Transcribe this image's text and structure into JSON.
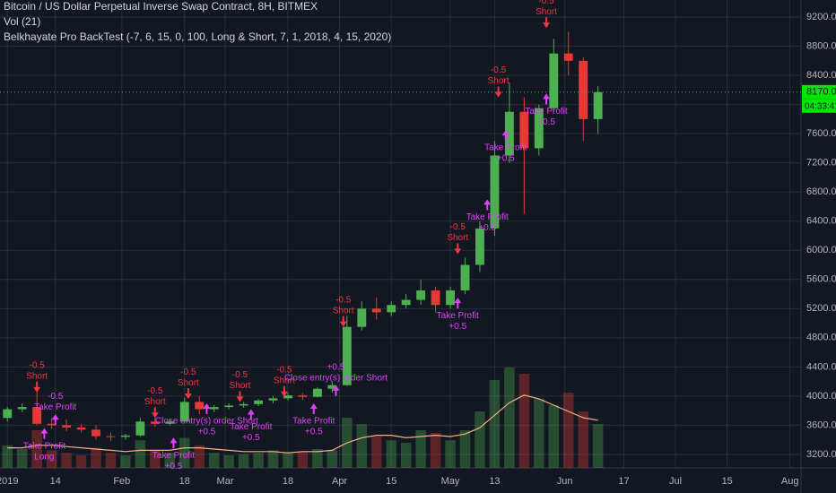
{
  "chart_data": {
    "type": "candlestick",
    "title": "Bitcoin / US Dollar Perpetual Inverse Swap Contract, 8H, BITMEX",
    "indicators": [
      "Vol (21)",
      "Belkhayate Pro BackTest (-7, 6, 15, 0, 100, Long & Short, 7, 1, 2018, 4, 15, 2020)"
    ],
    "x": [
      0,
      4,
      8,
      12,
      16,
      20,
      24,
      28,
      32,
      36,
      40,
      44,
      48,
      52,
      56,
      60,
      64,
      68,
      72,
      76,
      80,
      84,
      88,
      92,
      96,
      100,
      104,
      108,
      112,
      116,
      120,
      124,
      128,
      132,
      136,
      140,
      144,
      148,
      152,
      156,
      160
    ],
    "open": [
      3700,
      3820,
      3850,
      3620,
      3600,
      3570,
      3540,
      3450,
      3440,
      3460,
      3650,
      3620,
      3650,
      3920,
      3820,
      3850,
      3870,
      3890,
      3940,
      3970,
      4010,
      3990,
      4100,
      4150,
      4950,
      5200,
      5150,
      5250,
      5320,
      5450,
      5250,
      5450,
      5800,
      6300,
      7300,
      7900,
      7400,
      7950,
      8700,
      8600,
      7800
    ],
    "high": [
      3850,
      3900,
      4100,
      3700,
      3680,
      3620,
      3600,
      3500,
      3480,
      3700,
      3700,
      3680,
      3980,
      4000,
      3880,
      3900,
      3920,
      3960,
      4000,
      4050,
      4040,
      4120,
      4200,
      5100,
      5300,
      5350,
      5300,
      5400,
      5600,
      5500,
      5500,
      5900,
      6400,
      7500,
      8300,
      8100,
      8000,
      8900,
      9000,
      8650,
      8250
    ],
    "low": [
      3650,
      3780,
      3600,
      3550,
      3520,
      3500,
      3400,
      3380,
      3400,
      3440,
      3580,
      3600,
      3640,
      3750,
      3780,
      3820,
      3840,
      3860,
      3900,
      3940,
      3950,
      3980,
      4050,
      4140,
      4900,
      5050,
      5100,
      5200,
      5250,
      5150,
      5200,
      5400,
      5700,
      6200,
      7200,
      6500,
      7300,
      7900,
      8400,
      7500,
      7600
    ],
    "close": [
      3820,
      3850,
      3620,
      3600,
      3570,
      3540,
      3450,
      3440,
      3460,
      3650,
      3620,
      3650,
      3920,
      3820,
      3850,
      3870,
      3890,
      3940,
      3970,
      4010,
      3990,
      4100,
      4150,
      4950,
      5200,
      5150,
      5250,
      5320,
      5450,
      5250,
      5450,
      5800,
      6300,
      7300,
      7900,
      7400,
      7950,
      8700,
      8600,
      7800,
      8170
    ],
    "volume": [
      18,
      15,
      30,
      14,
      12,
      10,
      16,
      12,
      10,
      22,
      14,
      12,
      24,
      18,
      12,
      10,
      11,
      12,
      14,
      12,
      13,
      15,
      14,
      40,
      35,
      25,
      22,
      20,
      30,
      28,
      22,
      30,
      45,
      70,
      80,
      75,
      55,
      50,
      60,
      45,
      35
    ],
    "volume_ma": [
      16,
      16,
      18,
      18,
      17,
      16,
      15,
      14,
      13,
      14,
      14,
      14,
      16,
      16,
      15,
      14,
      13,
      13,
      13,
      12,
      13,
      13,
      14,
      20,
      24,
      26,
      26,
      24,
      25,
      26,
      25,
      27,
      32,
      42,
      52,
      58,
      55,
      50,
      45,
      40,
      38
    ],
    "volume_lim": [
      0,
      100
    ],
    "up_color": "#4caf50",
    "down_color": "#e53935",
    "volume_ma_color": "#f4b183",
    "xlim": [
      -2,
      215
    ],
    "ylim": [
      3015,
      9434
    ],
    "xticks": [
      {
        "value": 0,
        "label": "2019"
      },
      {
        "value": 13,
        "label": "14"
      },
      {
        "value": 31,
        "label": "Feb"
      },
      {
        "value": 48,
        "label": "18"
      },
      {
        "value": 59,
        "label": "Mar"
      },
      {
        "value": 76,
        "label": "18"
      },
      {
        "value": 90,
        "label": "Apr"
      },
      {
        "value": 104,
        "label": "15"
      },
      {
        "value": 120,
        "label": "May"
      },
      {
        "value": 132,
        "label": "13"
      },
      {
        "value": 151,
        "label": "Jun"
      },
      {
        "value": 167,
        "label": "17"
      },
      {
        "value": 181,
        "label": "Jul"
      },
      {
        "value": 195,
        "label": "15"
      },
      {
        "value": 212,
        "label": "Aug"
      }
    ],
    "yticks": [
      {
        "value": 3200,
        "label": "3200.0"
      },
      {
        "value": 3600,
        "label": "3600.0"
      },
      {
        "value": 4000,
        "label": "4000.0"
      },
      {
        "value": 4400,
        "label": "4400.0"
      },
      {
        "value": 4800,
        "label": "4800.0"
      },
      {
        "value": 5200,
        "label": "5200.0"
      },
      {
        "value": 5600,
        "label": "5600.0"
      },
      {
        "value": 6000,
        "label": "6000.0"
      },
      {
        "value": 6400,
        "label": "6400.0"
      },
      {
        "value": 6800,
        "label": "6800.0"
      },
      {
        "value": 7200,
        "label": "7200.0"
      },
      {
        "value": 7600,
        "label": "7600.0"
      },
      {
        "value": 8000,
        "label": "8000.0"
      },
      {
        "value": 8400,
        "label": "8400.0"
      },
      {
        "value": 8800,
        "label": "8800.0"
      },
      {
        "value": 9200,
        "label": "9200.0"
      }
    ],
    "grid": true,
    "last_price": {
      "value": 8170,
      "label": "8170.0"
    },
    "countdown": "04:33:41",
    "signals": [
      {
        "x": 8,
        "y": 4050,
        "text": "Short",
        "qty": "-0.5",
        "direction": "down",
        "color": "#f23645"
      },
      {
        "x": 13,
        "y": 3750,
        "text": "Take Profit",
        "qty": "-0.5",
        "direction": "up",
        "color": "#e040fb"
      },
      {
        "x": 10,
        "y": 3560,
        "text": "Take Profit",
        "qty": "Long",
        "direction": "below",
        "color": "#e040fb"
      },
      {
        "x": 40,
        "y": 3700,
        "text": "Short",
        "qty": "-0.5",
        "direction": "down",
        "color": "#f23645"
      },
      {
        "x": 45,
        "y": 3430,
        "text": "Take Profit",
        "qty": "+0.5",
        "direction": "below",
        "color": "#e040fb"
      },
      {
        "x": 49,
        "y": 3960,
        "text": "Short",
        "qty": "-0.5",
        "direction": "down",
        "color": "#f23645"
      },
      {
        "x": 54,
        "y": 3900,
        "text": "Close entry(s) order Short",
        "qty": "+0.5",
        "direction": "below",
        "color": "#e040fb"
      },
      {
        "x": 63,
        "y": 3920,
        "text": "Short",
        "qty": "-0.5",
        "direction": "down",
        "color": "#f23645"
      },
      {
        "x": 66,
        "y": 3820,
        "text": "Take Profit",
        "qty": "+0.5",
        "direction": "below",
        "color": "#e040fb"
      },
      {
        "x": 75,
        "y": 3990,
        "text": "Short",
        "qty": "-0.5",
        "direction": "down",
        "color": "#f23645"
      },
      {
        "x": 83,
        "y": 3900,
        "text": "Take Profit",
        "qty": "+0.5",
        "direction": "below",
        "color": "#e040fb"
      },
      {
        "x": 91,
        "y": 4950,
        "text": "Short",
        "qty": "-0.5",
        "direction": "down",
        "color": "#f23645"
      },
      {
        "x": 89,
        "y": 4150,
        "text": "Close entry(s) order Short",
        "qty": "+0.5",
        "direction": "up",
        "color": "#e040fb"
      },
      {
        "x": 122,
        "y": 5950,
        "text": "Short",
        "qty": "-0.5",
        "direction": "down",
        "color": "#f23645"
      },
      {
        "x": 122,
        "y": 5350,
        "text": "Take Profit",
        "qty": "+0.5",
        "direction": "below",
        "color": "#e040fb"
      },
      {
        "x": 130,
        "y": 6700,
        "text": "Take Profit",
        "qty": "+0.5",
        "direction": "below",
        "color": "#e040fb"
      },
      {
        "x": 133,
        "y": 8100,
        "text": "Short",
        "qty": "-0.5",
        "direction": "down",
        "color": "#f23645"
      },
      {
        "x": 135,
        "y": 7650,
        "text": "Take Profit",
        "qty": "+0.5",
        "direction": "below",
        "color": "#e040fb"
      },
      {
        "x": 146,
        "y": 9050,
        "text": "Short",
        "qty": "-0.5",
        "direction": "down",
        "color": "#f23645"
      },
      {
        "x": 146,
        "y": 8150,
        "text": "Take Profit",
        "qty": "+0.5",
        "direction": "below",
        "color": "#e040fb"
      }
    ]
  }
}
